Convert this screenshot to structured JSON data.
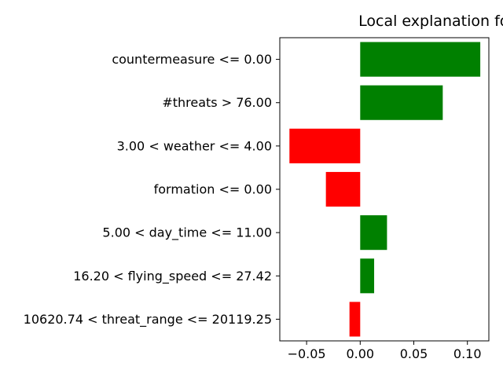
{
  "chart_data": {
    "type": "bar",
    "orientation": "horizontal",
    "title": "Local explanation for class good",
    "xlabel": "",
    "ylabel": "",
    "categories": [
      "countermeasure <= 0.00",
      "#threats > 76.00",
      "3.00 < weather <= 4.00",
      "formation <= 0.00",
      "5.00 < day_time <= 11.00",
      "16.20 < flying_speed <= 27.42",
      "10620.74 < threat_range <= 20119.25"
    ],
    "values": [
      0.112,
      0.077,
      -0.066,
      -0.032,
      0.025,
      0.013,
      -0.01
    ],
    "xlim": [
      -0.075,
      0.12
    ],
    "xticks": [
      -0.05,
      0.0,
      0.05,
      0.1
    ],
    "xtick_labels": [
      "−0.05",
      "0.00",
      "0.05",
      "0.10"
    ],
    "colors": {
      "positive": "#008000",
      "negative": "#ff0000"
    },
    "grid": false,
    "legend": "none"
  }
}
